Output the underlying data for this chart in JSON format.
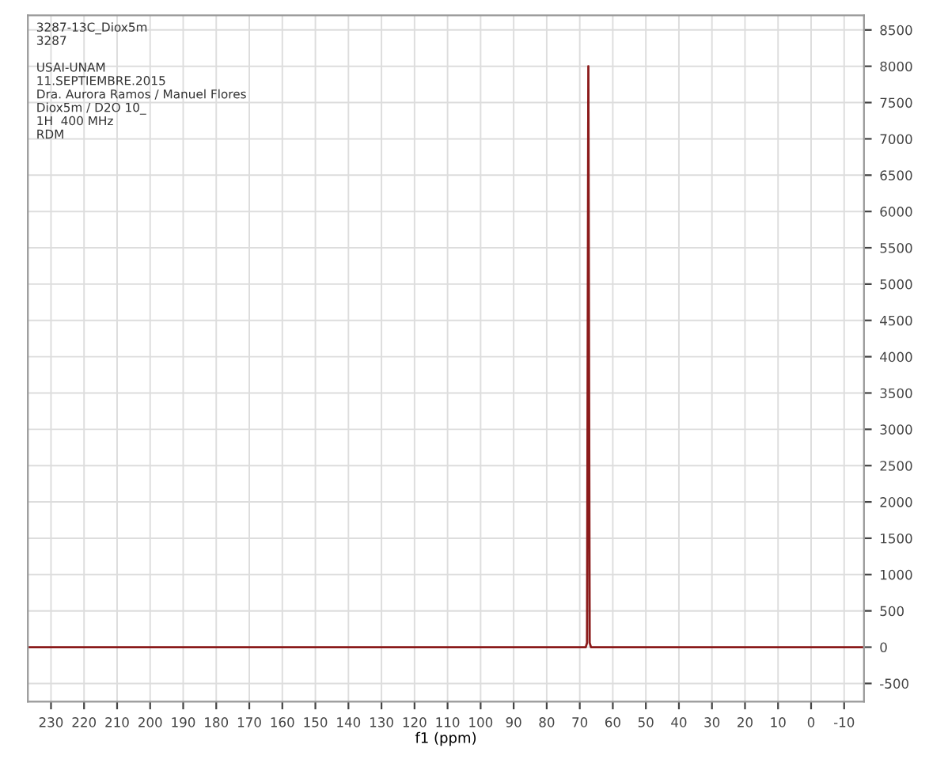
{
  "chart_data": {
    "type": "line",
    "xlabel": "f1 (ppm)",
    "annotations": [
      "3287-13C_Diox5m",
      "3287",
      "USAI-UNAM",
      "11.SEPTIEMBRE.2015",
      "Dra. Aurora Ramos / Manuel Flores",
      "Diox5m / D2O 10_",
      "1H  400 MHz",
      "RDM"
    ],
    "x": [
      237,
      150,
      100,
      68.2,
      67.8,
      67.4,
      67.0,
      66.6,
      66.2,
      30,
      -16
    ],
    "series": [
      {
        "color": "#8b1a1a",
        "values": [
          0,
          0,
          0,
          0,
          60,
          8000,
          60,
          0,
          0,
          0,
          0
        ]
      }
    ],
    "xlim": [
      237,
      -16
    ],
    "xticks": [
      230,
      220,
      210,
      200,
      190,
      180,
      170,
      160,
      150,
      140,
      130,
      120,
      110,
      100,
      90,
      80,
      70,
      60,
      50,
      40,
      30,
      20,
      10,
      0,
      -10
    ],
    "ylim": [
      -750,
      8700
    ],
    "yticks": [
      -500,
      0,
      500,
      1000,
      1500,
      2000,
      2500,
      3000,
      3500,
      4000,
      4500,
      5000,
      5500,
      6000,
      6500,
      7000,
      7500,
      8000,
      8500
    ],
    "grid": true,
    "legend": false,
    "marker": "none",
    "line_style": "solid"
  }
}
